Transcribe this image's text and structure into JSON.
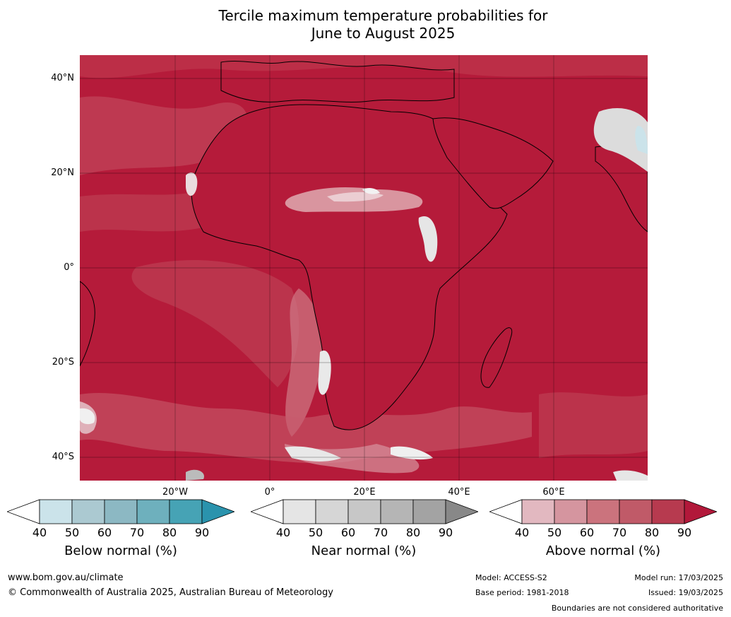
{
  "title_line1": "Tercile maximum temperature probabilities for",
  "title_line2": "June to August 2025",
  "lat_labels": [
    "40°N",
    "20°N",
    "0°",
    "20°S",
    "40°S"
  ],
  "lon_labels": [
    "20°W",
    "0°",
    "20°E",
    "40°E",
    "60°E"
  ],
  "colorbars": [
    {
      "name": "Below normal (%)",
      "ticks": [
        "40",
        "50",
        "60",
        "70",
        "80",
        "90"
      ],
      "colors": [
        "#ffffff",
        "#cbe3ea",
        "#abc9d1",
        "#8cb8c3",
        "#6eb0bd",
        "#46a3b5",
        "#2a93ad"
      ]
    },
    {
      "name": "Near normal (%)",
      "ticks": [
        "40",
        "50",
        "60",
        "70",
        "80",
        "90"
      ],
      "colors": [
        "#ffffff",
        "#e5e5e5",
        "#d6d6d6",
        "#c7c7c7",
        "#b5b5b5",
        "#a3a3a3",
        "#888888"
      ]
    },
    {
      "name": "Above normal (%)",
      "ticks": [
        "40",
        "50",
        "60",
        "70",
        "80",
        "90"
      ],
      "colors": [
        "#ffffff",
        "#e2b8c0",
        "#d5959f",
        "#cb737d",
        "#c05a68",
        "#b73a4f",
        "#b2183a"
      ]
    }
  ],
  "footer": {
    "website": "www.bom.gov.au/climate",
    "copyright": "© Commonwealth of Australia 2025, Australian Bureau of Meteorology",
    "model": "Model: ACCESS-S2",
    "base_period": "Base period: 1981-2018",
    "model_run": "Model run: 17/03/2025",
    "issued": "Issued: 19/03/2025",
    "disclaimer": "Boundaries are not considered authoritative"
  }
}
